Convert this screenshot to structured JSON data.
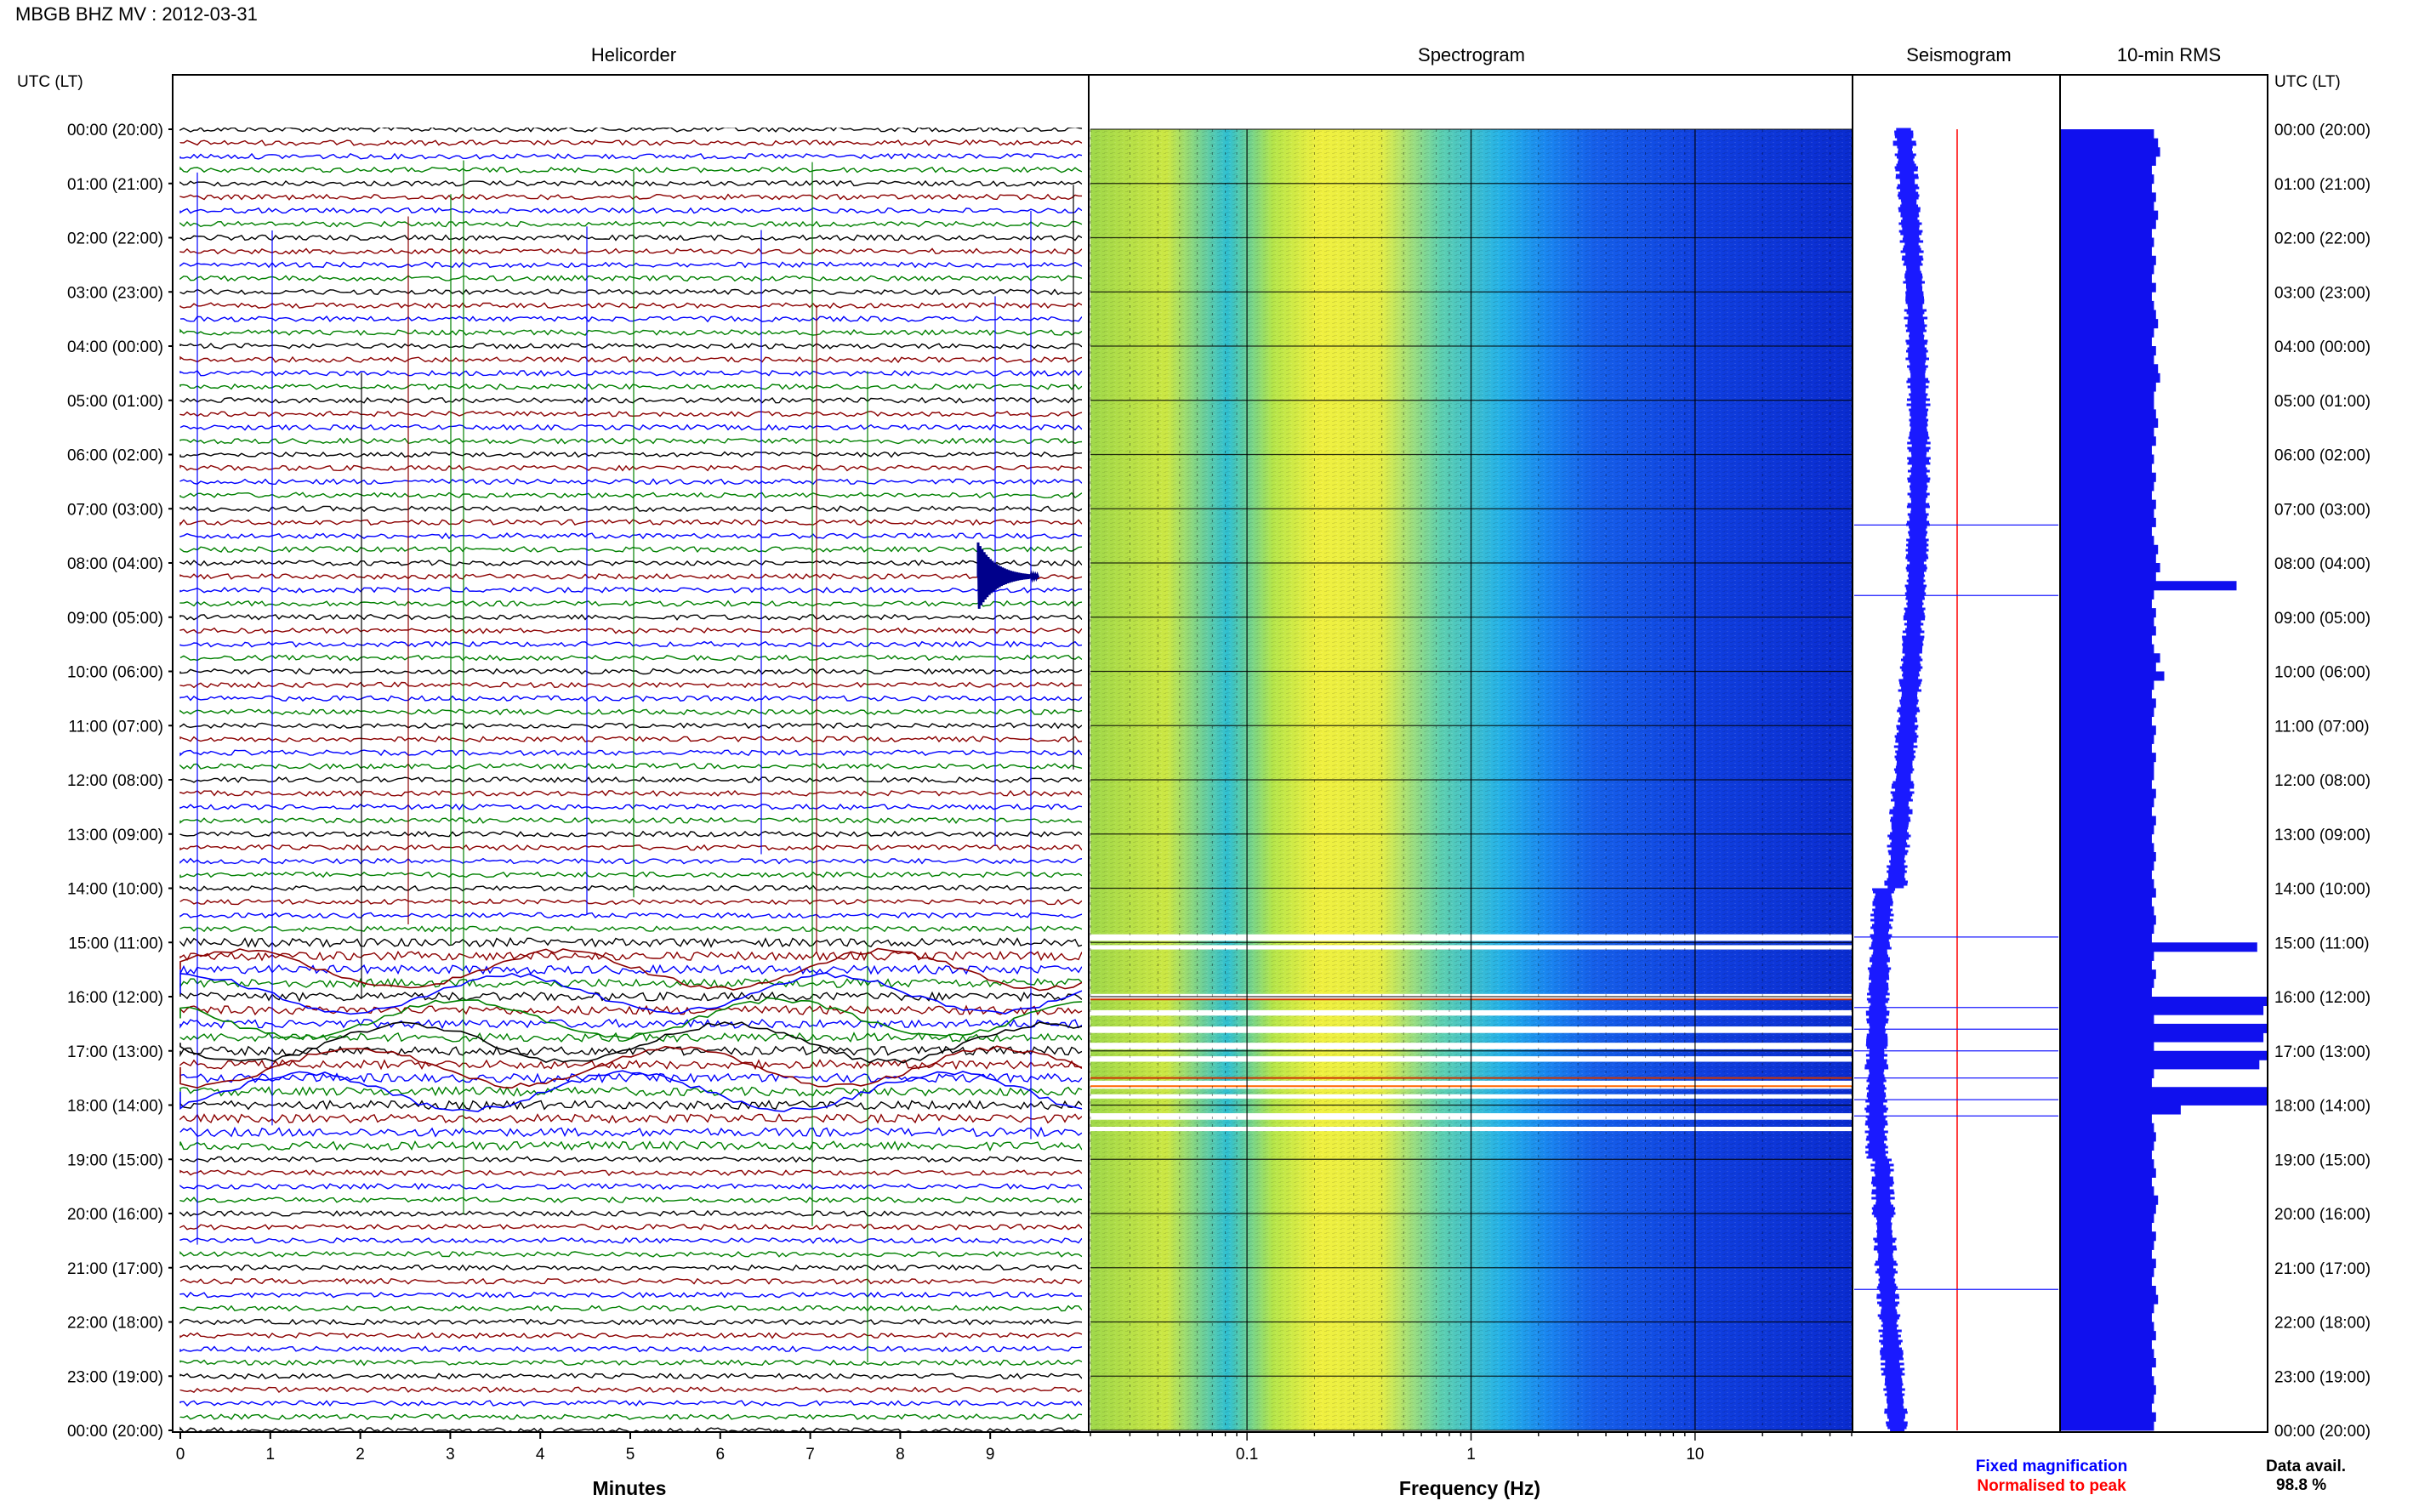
{
  "page": {
    "title": "MBGB BHZ MV : 2012-03-31"
  },
  "panels": {
    "helicorder": "Helicorder",
    "spectrogram": "Spectrogram",
    "seismogram": "Seismogram",
    "rms": "10-min RMS"
  },
  "axes": {
    "left_label": "UTC (LT)",
    "right_label": "UTC (LT)",
    "time_ticks": [
      "00:00 (20:00)",
      "01:00 (21:00)",
      "02:00 (22:00)",
      "03:00 (23:00)",
      "04:00 (00:00)",
      "05:00 (01:00)",
      "06:00 (02:00)",
      "07:00 (03:00)",
      "08:00 (04:00)",
      "09:00 (05:00)",
      "10:00 (06:00)",
      "11:00 (07:00)",
      "12:00 (08:00)",
      "13:00 (09:00)",
      "14:00 (10:00)",
      "15:00 (11:00)",
      "16:00 (12:00)",
      "17:00 (13:00)",
      "18:00 (14:00)",
      "19:00 (15:00)",
      "20:00 (16:00)",
      "21:00 (17:00)",
      "22:00 (18:00)",
      "23:00 (19:00)",
      "00:00 (20:00)"
    ],
    "minutes_label": "Minutes",
    "minutes_ticks": [
      "0",
      "1",
      "2",
      "3",
      "4",
      "5",
      "6",
      "7",
      "8",
      "9"
    ],
    "freq_label": "Frequency (Hz)",
    "freq_ticks": [
      "0.1",
      "1",
      "10"
    ]
  },
  "legend": {
    "fixed": "Fixed magnification",
    "normalised": "Normalised to peak",
    "fixed_color": "#0000ff",
    "normalised_color": "#ff0000"
  },
  "availability": {
    "label": "Data avail.",
    "value": "98.8 %"
  },
  "chart_data": {
    "type": "heatmap",
    "x_minutes_range": [
      0,
      10
    ],
    "freq_range_hz": [
      0.02,
      50
    ],
    "freq_scale": "log",
    "hours": 24,
    "trace_colors": [
      "#000000",
      "#8b0000",
      "#0000ff",
      "#008000"
    ],
    "rms_10min_relative": [
      0.45,
      0.47,
      0.48,
      0.46,
      0.44,
      0.45,
      0.44,
      0.46,
      0.45,
      0.47,
      0.46,
      0.44,
      0.45,
      0.44,
      0.46,
      0.45,
      0.44,
      0.46,
      0.44,
      0.45,
      0.46,
      0.47,
      0.45,
      0.44,
      0.46,
      0.45,
      0.47,
      0.48,
      0.46,
      0.45,
      0.45,
      0.46,
      0.47,
      0.45,
      0.46,
      0.44,
      0.45,
      0.44,
      0.46,
      0.45,
      0.44,
      0.46,
      0.45,
      0.46,
      0.44,
      0.45,
      0.47,
      0.46,
      0.48,
      0.46,
      0.85,
      0.45,
      0.44,
      0.46,
      0.45,
      0.46,
      0.44,
      0.45,
      0.48,
      0.46,
      0.5,
      0.45,
      0.44,
      0.46,
      0.45,
      0.44,
      0.46,
      0.45,
      0.44,
      0.46,
      0.45,
      0.45,
      0.44,
      0.46,
      0.45,
      0.44,
      0.46,
      0.45,
      0.44,
      0.45,
      0.46,
      0.45,
      0.44,
      0.45,
      0.46,
      0.44,
      0.45,
      0.46,
      0.45,
      0.44,
      0.95,
      0.45,
      0.44,
      0.46,
      0.45,
      0.44,
      1.0,
      0.98,
      0.45,
      1.0,
      0.98,
      0.45,
      1.0,
      0.96,
      0.45,
      0.44,
      1.0,
      1.0,
      0.58,
      0.44,
      0.45,
      0.46,
      0.45,
      0.44,
      0.45,
      0.46,
      0.44,
      0.45,
      0.47,
      0.46,
      0.45,
      0.44,
      0.46,
      0.45,
      0.44,
      0.46,
      0.45,
      0.44,
      0.46,
      0.47,
      0.45,
      0.44,
      0.45,
      0.46,
      0.44,
      0.45,
      0.46,
      0.44,
      0.45,
      0.46,
      0.45,
      0.44,
      0.46,
      0.45
    ]
  }
}
